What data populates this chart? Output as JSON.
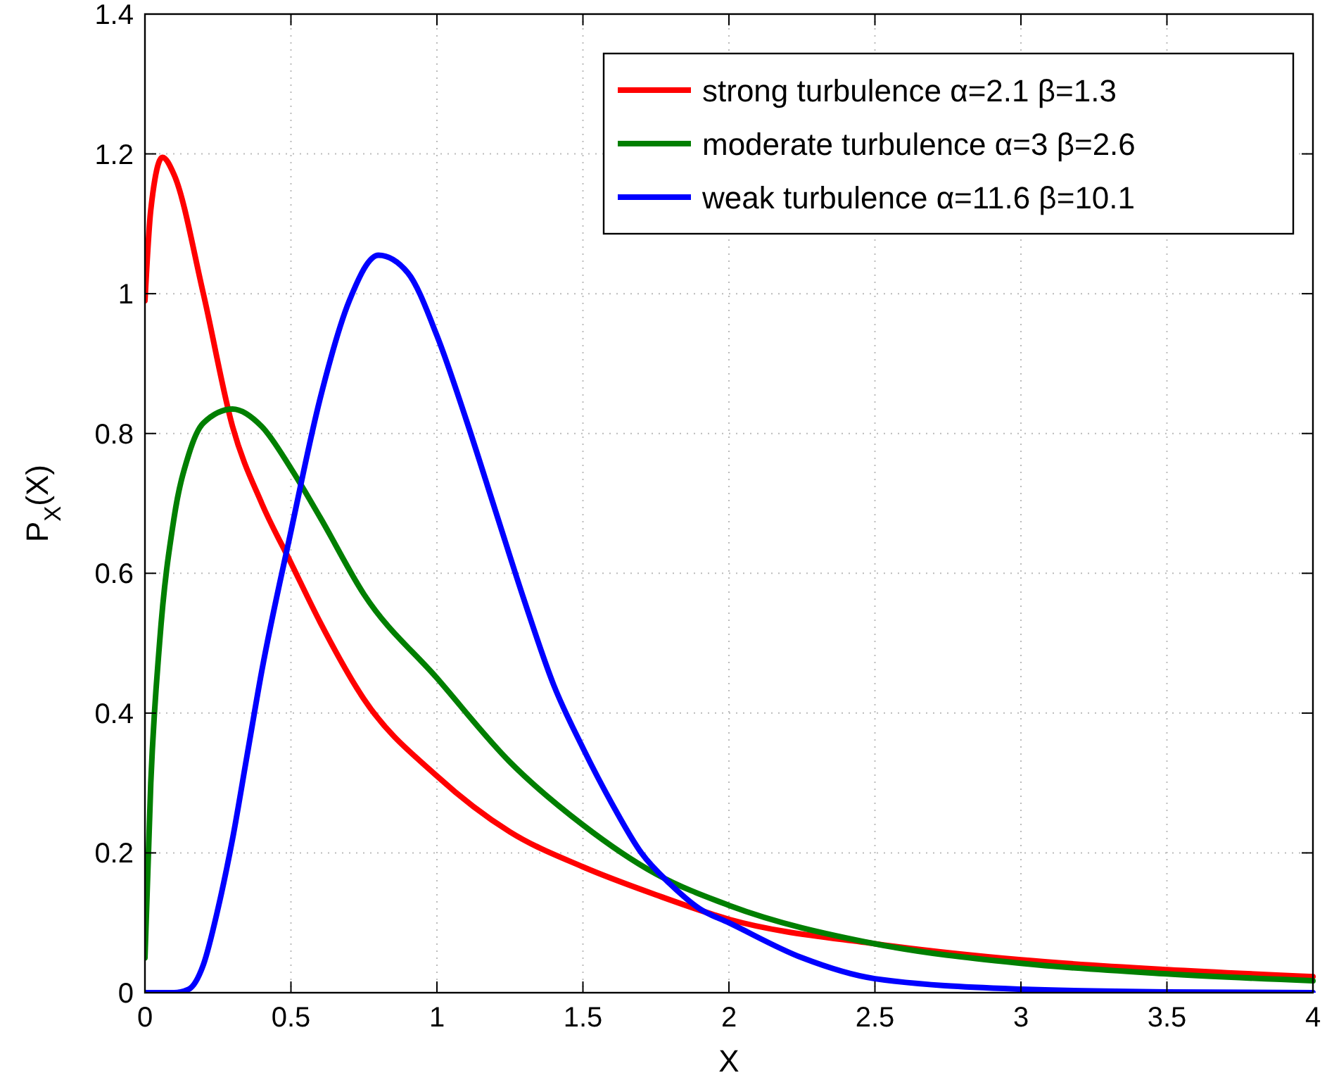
{
  "chart_data": {
    "type": "line",
    "xlabel": "X",
    "ylabel": "P$_{X}$(X)",
    "xlim": [
      0,
      4
    ],
    "ylim": [
      0,
      1.4
    ],
    "xticks": [
      0,
      0.5,
      1,
      1.5,
      2,
      2.5,
      3,
      3.5,
      4
    ],
    "yticks": [
      0,
      0.2,
      0.4,
      0.6,
      0.8,
      1,
      1.2,
      1.4
    ],
    "grid": true,
    "legend": "top right",
    "line_style": "solid",
    "marker": "none",
    "series": [
      {
        "name": "strong turbulence α=2.1 β=1.3",
        "color": "#ff0000",
        "x": [
          0,
          0.02,
          0.06,
          0.1,
          0.2,
          0.3,
          0.4,
          0.5,
          0.6,
          0.75,
          1,
          1.25,
          1.5,
          1.75,
          2,
          2.5,
          3,
          3.5,
          4
        ],
        "values": [
          0.99,
          1.12,
          1.195,
          1.17,
          1.0,
          0.81,
          0.7,
          0.615,
          0.53,
          0.42,
          0.31,
          0.23,
          0.18,
          0.14,
          0.105,
          0.07,
          0.047,
          0.033,
          0.023
        ]
      },
      {
        "name": "moderate turbulence α=3 β=2.6",
        "color": "#007f00",
        "x": [
          0,
          0.02,
          0.05,
          0.1,
          0.15,
          0.2,
          0.3,
          0.4,
          0.5,
          0.6,
          0.75,
          1,
          1.25,
          1.5,
          1.75,
          2,
          2.5,
          3,
          3.5,
          4
        ],
        "values": [
          0.05,
          0.3,
          0.5,
          0.68,
          0.77,
          0.815,
          0.835,
          0.81,
          0.75,
          0.68,
          0.57,
          0.45,
          0.33,
          0.24,
          0.17,
          0.125,
          0.07,
          0.042,
          0.027,
          0.017
        ]
      },
      {
        "name": "weak turbulence α=11.6 β=10.1",
        "color": "#0000ff",
        "x": [
          0,
          0.1,
          0.15,
          0.2,
          0.25,
          0.3,
          0.35,
          0.4,
          0.5,
          0.6,
          0.7,
          0.8,
          0.9,
          1,
          1.1,
          1.2,
          1.3,
          1.4,
          1.5,
          1.6,
          1.7,
          1.8,
          1.9,
          2,
          2.25,
          2.5,
          3,
          3.5,
          4
        ],
        "values": [
          0,
          0,
          0.005,
          0.04,
          0.12,
          0.22,
          0.34,
          0.46,
          0.66,
          0.85,
          0.99,
          1.055,
          1.03,
          0.94,
          0.82,
          0.69,
          0.56,
          0.44,
          0.35,
          0.27,
          0.2,
          0.155,
          0.12,
          0.1,
          0.05,
          0.02,
          0.005,
          0.001,
          0
        ]
      }
    ]
  }
}
